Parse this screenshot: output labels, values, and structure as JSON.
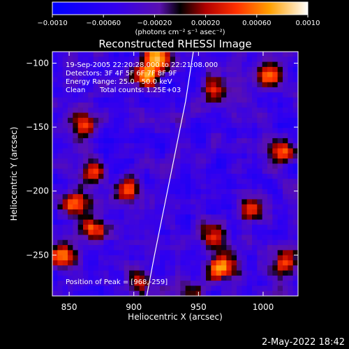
{
  "chart_data": {
    "type": "heatmap",
    "title": "Reconstructed RHESSI Image",
    "xlabel": "Heliocentric X (arcsec)",
    "ylabel": "Heliocentric Y (arcsec)",
    "xlim": [
      837,
      1027
    ],
    "ylim": [
      -282,
      -91
    ],
    "x_ticks": [
      850,
      900,
      950,
      1000
    ],
    "x_tick_labels": [
      "850",
      "900",
      "950",
      "1000"
    ],
    "y_ticks": [
      -100,
      -150,
      -200,
      -250
    ],
    "y_tick_labels": [
      "−100",
      "−150",
      "−200",
      "−250"
    ],
    "colorbar": {
      "range": [
        -0.001,
        0.001
      ],
      "ticks": [
        -0.001,
        -0.0006,
        -0.0002,
        0.0002,
        0.0006,
        0.001
      ],
      "tick_labels": [
        "−0.0010",
        "−0.00060",
        "−0.00020",
        "0.00020",
        "0.00060",
        "0.0010"
      ],
      "label": "(photons cm⁻² s⁻¹ asec⁻²)"
    },
    "annotations": [
      "19-Sep-2005 22:20:28.000 to 22:21:08.000",
      "Detectors: 3F 4F 5F 6F 7F 8F 9F",
      "Energy Range: 25.0 - 50.0 keV",
      "Clean",
      "Total counts: 1.25E+03",
      "Position of Peak = [968,-259]"
    ],
    "peak": {
      "x": 968,
      "y": -259
    },
    "limb": [
      [
        946,
        -91
      ],
      [
        940,
        -130
      ],
      [
        932,
        -170
      ],
      [
        924,
        -210
      ],
      [
        916,
        -250
      ],
      [
        910,
        -282
      ]
    ],
    "hot_regions": [
      {
        "x": 862,
        "y": -148,
        "v": 0.7
      },
      {
        "x": 867,
        "y": -185,
        "v": 0.6
      },
      {
        "x": 853,
        "y": -210,
        "v": 0.8
      },
      {
        "x": 845,
        "y": -250,
        "v": 0.9
      },
      {
        "x": 910,
        "y": -108,
        "v": 1.0
      },
      {
        "x": 918,
        "y": -94,
        "v": 0.9
      },
      {
        "x": 962,
        "y": -122,
        "v": 0.7
      },
      {
        "x": 1005,
        "y": -110,
        "v": 0.8
      },
      {
        "x": 1015,
        "y": -170,
        "v": 0.8
      },
      {
        "x": 990,
        "y": -215,
        "v": 0.7
      },
      {
        "x": 1018,
        "y": -255,
        "v": 0.7
      },
      {
        "x": 968,
        "y": -259,
        "v": 1.0
      },
      {
        "x": 960,
        "y": -235,
        "v": 0.7
      },
      {
        "x": 895,
        "y": -200,
        "v": 0.6
      },
      {
        "x": 945,
        "y": -280,
        "v": 0.6
      },
      {
        "x": 905,
        "y": -270,
        "v": 0.5
      },
      {
        "x": 870,
        "y": -230,
        "v": 0.7
      }
    ]
  },
  "footer": {
    "date": "2-May-2022 18:42"
  }
}
